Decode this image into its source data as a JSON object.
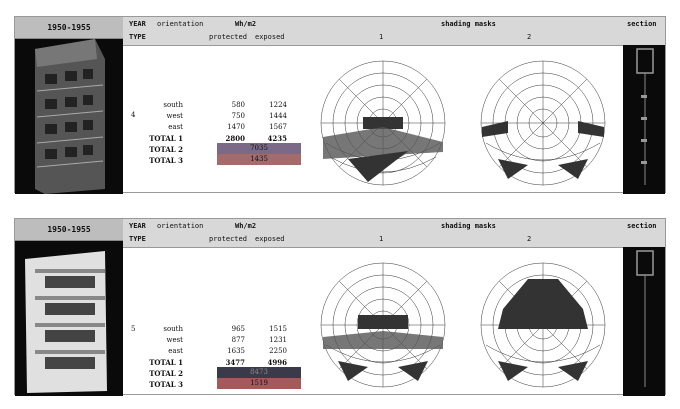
{
  "headers": {
    "year": "YEAR",
    "type": "TYPE",
    "orientation": "orientation",
    "wh": "Wh/m2",
    "protected": "protected",
    "exposed": "exposed",
    "shading_masks": "shading masks",
    "mask1": "1",
    "mask2": "2",
    "section": "section"
  },
  "panels": [
    {
      "year": "1950-1955",
      "type": "4",
      "rows": [
        {
          "label": "south",
          "protected": "580",
          "exposed": "1224"
        },
        {
          "label": "west",
          "protected": "750",
          "exposed": "1444"
        },
        {
          "label": "east",
          "protected": "1470",
          "exposed": "1567"
        }
      ],
      "total1": {
        "label": "TOTAL 1",
        "protected": "2800",
        "exposed": "4235"
      },
      "total2": {
        "label": "TOTAL 2",
        "value": "7035"
      },
      "total3": {
        "label": "TOTAL 3",
        "value": "1435"
      },
      "total2_color": "#7a6a88",
      "total3_color": "#a56a6a"
    },
    {
      "year": "1950-1955",
      "type": "5",
      "rows": [
        {
          "label": "south",
          "protected": "965",
          "exposed": "1515"
        },
        {
          "label": "west",
          "protected": "877",
          "exposed": "1231"
        },
        {
          "label": "east",
          "protected": "1635",
          "exposed": "2250"
        }
      ],
      "total1": {
        "label": "TOTAL 1",
        "protected": "3477",
        "exposed": "4996"
      },
      "total2": {
        "label": "TOTAL 2",
        "value": "8473"
      },
      "total3": {
        "label": "TOTAL 3",
        "value": "1519"
      },
      "total2_color": "#3a3a4a",
      "total3_color": "#a55a5a"
    }
  ]
}
